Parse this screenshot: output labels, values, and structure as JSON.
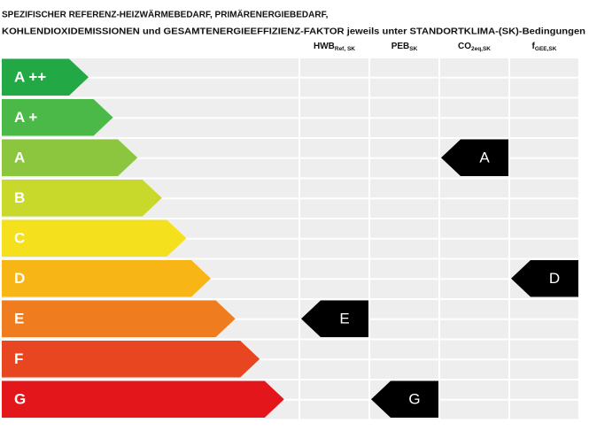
{
  "title": [
    "SPEZIFISCHER REFERENZ-HEIZWÄRMEBEDARF, PRIMÄRENERGIEBEDARF,",
    "KOHLENDIOXIDEMISSIONEN und GESAMTENERGIEEFFIZIENZ-FAKTOR jeweils unter STANDORTKLIMA-(SK)-Bedingungen"
  ],
  "columns": [
    {
      "main": "HWB",
      "sub": "Ref, SK",
      "rating": "E"
    },
    {
      "main": "PEB",
      "sub": "SK",
      "rating": "G"
    },
    {
      "main": "CO",
      "sub": "2eq,SK",
      "rating": "A"
    },
    {
      "main": "f",
      "sub": "GEE,SK",
      "rating": "D"
    }
  ],
  "classes": [
    {
      "label": "A ++",
      "color": "#22a844"
    },
    {
      "label": "A +",
      "color": "#4ab948"
    },
    {
      "label": "A",
      "color": "#8cc63e"
    },
    {
      "label": "B",
      "color": "#c8d92b"
    },
    {
      "label": "C",
      "color": "#f4e01c"
    },
    {
      "label": "D",
      "color": "#f8b516"
    },
    {
      "label": "E",
      "color": "#ef7d1f"
    },
    {
      "label": "F",
      "color": "#e74620"
    },
    {
      "label": "G",
      "color": "#e3161b"
    }
  ]
}
